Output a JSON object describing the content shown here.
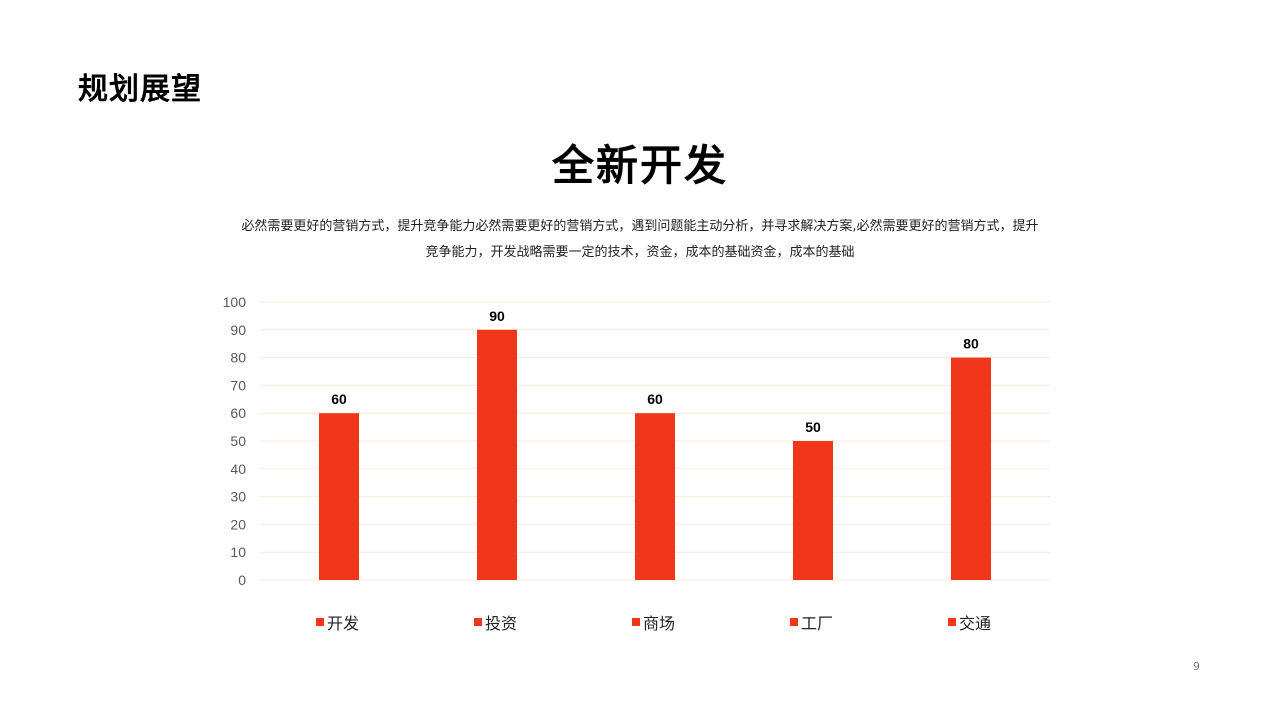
{
  "section_title": "规划展望",
  "slide_title": "全新开发",
  "description": "必然需要更好的营销方式，提升竞争能力必然需要更好的营销方式，遇到问题能主动分析，并寻求解决方案,必然需要更好的营销方式，提升竞争能力，开发战略需要一定的技术，资金，成本的基础资金，成本的基础",
  "page_number": "9",
  "colors": {
    "bar": "#f0361b",
    "grid": "#fde9d9",
    "tick": "#595959"
  },
  "chart_data": {
    "type": "bar",
    "title": "",
    "xlabel": "",
    "ylabel": "",
    "categories": [
      "开发",
      "投资",
      "商场",
      "工厂",
      "交通"
    ],
    "values": [
      60,
      90,
      60,
      50,
      80
    ],
    "ylim": [
      0,
      100
    ],
    "yticks": [
      0,
      10,
      20,
      30,
      40,
      50,
      60,
      70,
      80,
      90,
      100
    ],
    "data_labels": true,
    "grid": true,
    "legend": "bottom"
  }
}
